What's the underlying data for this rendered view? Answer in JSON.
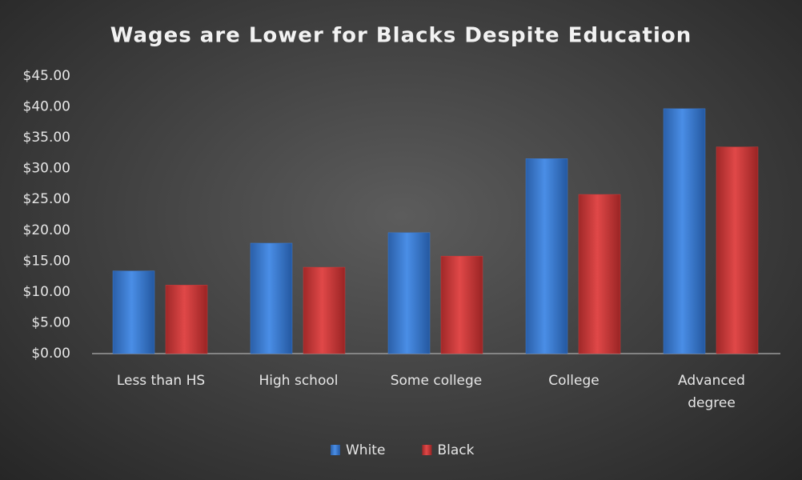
{
  "chart_data": {
    "type": "bar",
    "title": "Wages are Lower for Blacks Despite Education",
    "categories": [
      "Less than HS",
      "High school",
      "Some college",
      "College",
      "Advanced degree"
    ],
    "series": [
      {
        "name": "White",
        "color": "#3b7dd8",
        "values": [
          13.4,
          17.9,
          19.6,
          31.6,
          39.7
        ]
      },
      {
        "name": "Black",
        "color": "#d03a3a",
        "values": [
          11.1,
          14.0,
          15.8,
          25.8,
          33.5
        ]
      }
    ],
    "ylim": [
      0,
      45
    ],
    "yticks": [
      {
        "value": 0,
        "label": "$0.00"
      },
      {
        "value": 5,
        "label": "$5.00"
      },
      {
        "value": 10,
        "label": "$10.00"
      },
      {
        "value": 15,
        "label": "$15.00"
      },
      {
        "value": 20,
        "label": "$20.00"
      },
      {
        "value": 25,
        "label": "$25.00"
      },
      {
        "value": 30,
        "label": "$30.00"
      },
      {
        "value": 35,
        "label": "$35.00"
      },
      {
        "value": 40,
        "label": "$40.00"
      },
      {
        "value": 45,
        "label": "$45.00"
      }
    ],
    "grid": false,
    "legend": "bottom"
  }
}
